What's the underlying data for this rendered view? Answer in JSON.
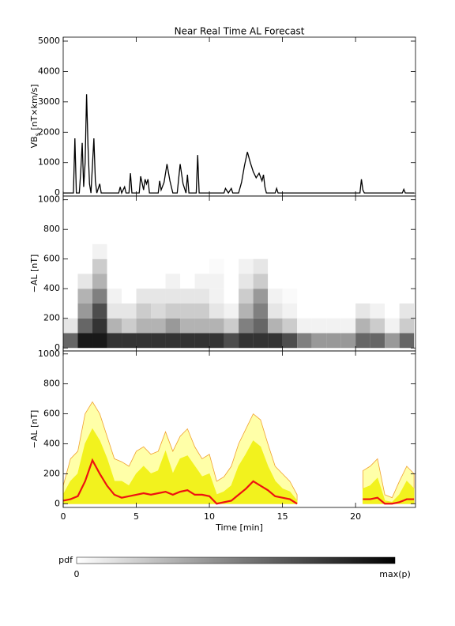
{
  "chart_data": [
    {
      "type": "line",
      "title": "Near Real Time AL Forecast",
      "ylabel": {
        "main": "VB",
        "sub": "s",
        "rest": " [nT×km/s]"
      },
      "color": "#000000",
      "x": [
        0.0,
        0.7,
        0.8,
        0.9,
        1.1,
        1.2,
        1.3,
        1.4,
        1.5,
        1.6,
        1.7,
        1.8,
        1.9,
        2.0,
        2.1,
        2.2,
        2.3,
        2.5,
        2.6,
        3.8,
        3.9,
        4.0,
        4.2,
        4.3,
        4.5,
        4.6,
        4.7,
        5.2,
        5.3,
        5.5,
        5.6,
        5.7,
        5.8,
        5.9,
        6.5,
        6.6,
        6.7,
        6.9,
        7.0,
        7.1,
        7.3,
        7.5,
        7.8,
        8.0,
        8.2,
        8.4,
        8.5,
        8.6,
        9.1,
        9.2,
        9.3,
        11.0,
        11.1,
        11.3,
        11.5,
        11.6,
        12.0,
        12.2,
        12.4,
        12.6,
        12.8,
        13.0,
        13.2,
        13.4,
        13.6,
        13.7,
        13.8,
        13.9,
        14.5,
        14.6,
        14.7,
        20.3,
        20.4,
        20.5,
        20.6,
        23.2,
        23.3,
        23.4,
        24.0
      ],
      "values": [
        0,
        0,
        1800,
        0,
        0,
        700,
        1650,
        200,
        1000,
        3250,
        1500,
        300,
        0,
        900,
        1800,
        400,
        0,
        300,
        0,
        0,
        200,
        0,
        200,
        0,
        0,
        650,
        0,
        0,
        550,
        100,
        450,
        300,
        450,
        0,
        0,
        400,
        100,
        350,
        650,
        950,
        400,
        0,
        0,
        950,
        300,
        0,
        600,
        0,
        0,
        1250,
        0,
        0,
        150,
        0,
        150,
        0,
        0,
        350,
        900,
        1350,
        1000,
        700,
        500,
        650,
        400,
        600,
        200,
        0,
        0,
        150,
        0,
        0,
        450,
        100,
        0,
        0,
        120,
        0,
        0
      ],
      "xlim": [
        0,
        24.1
      ],
      "xticks": [
        0,
        5,
        10,
        15,
        20
      ],
      "show_xtick_labels": false,
      "ylim": [
        -100,
        5130
      ],
      "yticks": [
        0,
        1000,
        2000,
        3000,
        4000,
        5000
      ]
    },
    {
      "type": "heatmap",
      "ylabel": "−AL [nT]",
      "xbins": [
        0,
        1,
        2,
        3,
        4,
        5,
        6,
        7,
        8,
        9,
        10,
        11,
        12,
        13,
        14,
        15,
        16,
        17,
        18,
        19,
        20,
        21,
        22,
        23,
        24
      ],
      "ybins": [
        0,
        100,
        200,
        300,
        400,
        500,
        600,
        700
      ],
      "z": [
        [
          0.6,
          0.1,
          0,
          0,
          0,
          0,
          0
        ],
        [
          0.9,
          0.6,
          0.4,
          0.3,
          0.1,
          0,
          0
        ],
        [
          0.9,
          0.8,
          0.7,
          0.5,
          0.3,
          0.2,
          0.05
        ],
        [
          0.8,
          0.3,
          0.1,
          0.05,
          0,
          0,
          0
        ],
        [
          0.8,
          0.2,
          0.1,
          0,
          0,
          0,
          0
        ],
        [
          0.8,
          0.3,
          0.2,
          0.1,
          0,
          0,
          0
        ],
        [
          0.8,
          0.3,
          0.15,
          0.1,
          0,
          0,
          0
        ],
        [
          0.8,
          0.4,
          0.2,
          0.1,
          0.05,
          0,
          0
        ],
        [
          0.8,
          0.3,
          0.2,
          0.1,
          0,
          0,
          0
        ],
        [
          0.8,
          0.3,
          0.2,
          0.1,
          0.05,
          0,
          0
        ],
        [
          0.8,
          0.3,
          0.1,
          0.05,
          0.05,
          0.02,
          0
        ],
        [
          0.7,
          0.2,
          0.05,
          0,
          0,
          0,
          0
        ],
        [
          0.8,
          0.5,
          0.3,
          0.2,
          0.1,
          0.05,
          0
        ],
        [
          0.8,
          0.6,
          0.5,
          0.4,
          0.2,
          0.1,
          0
        ],
        [
          0.8,
          0.3,
          0.1,
          0.05,
          0,
          0,
          0
        ],
        [
          0.7,
          0.2,
          0.05,
          0.02,
          0,
          0,
          0
        ],
        [
          0.5,
          0.05,
          0,
          0,
          0,
          0,
          0
        ],
        [
          0.4,
          0.05,
          0,
          0,
          0,
          0,
          0
        ],
        [
          0.4,
          0.05,
          0,
          0,
          0,
          0,
          0
        ],
        [
          0.4,
          0.05,
          0,
          0,
          0,
          0,
          0
        ],
        [
          0.6,
          0.3,
          0.1,
          0,
          0,
          0,
          0
        ],
        [
          0.6,
          0.2,
          0.05,
          0,
          0,
          0,
          0
        ],
        [
          0.4,
          0.05,
          0,
          0,
          0,
          0,
          0
        ],
        [
          0.6,
          0.2,
          0.1,
          0,
          0,
          0,
          0
        ]
      ],
      "colorbar": {
        "label": "pdf",
        "min_label": "0",
        "max_label": "max(p)"
      },
      "xlim": [
        0,
        24.1
      ],
      "xticks": [
        0,
        5,
        10,
        15,
        20
      ],
      "show_xtick_labels": false,
      "ylim": [
        -20,
        1025
      ],
      "yticks": [
        0,
        200,
        400,
        600,
        800,
        1000
      ]
    },
    {
      "type": "area",
      "ylabel": "−AL [nT]",
      "xlabel": "Time [min]",
      "x": [
        0,
        0.5,
        1,
        1.5,
        2,
        2.5,
        3,
        3.5,
        4,
        4.5,
        5,
        5.5,
        6,
        6.5,
        7,
        7.5,
        8,
        8.5,
        9,
        9.5,
        10,
        10.5,
        11,
        11.5,
        12,
        12.5,
        13,
        13.5,
        14,
        14.5,
        15,
        15.5,
        16,
        16.5,
        17,
        17.5,
        18,
        18.5,
        19,
        19.5,
        20,
        20.5,
        21,
        21.5,
        22,
        22.5,
        23,
        23.5,
        24
      ],
      "series": [
        {
          "color": "#f0a030",
          "fill": "#ffffa8",
          "values": [
            120,
            300,
            350,
            600,
            680,
            600,
            450,
            300,
            280,
            250,
            350,
            380,
            330,
            350,
            480,
            350,
            450,
            500,
            380,
            300,
            330,
            150,
            180,
            250,
            400,
            500,
            600,
            560,
            400,
            250,
            200,
            150,
            60,
            null,
            null,
            null,
            null,
            null,
            null,
            null,
            null,
            220,
            250,
            300,
            60,
            40,
            150,
            250,
            200
          ]
        },
        {
          "color": "#f2f21e",
          "fill": "#f2f21e",
          "values": [
            60,
            150,
            200,
            400,
            500,
            420,
            300,
            150,
            150,
            120,
            200,
            250,
            200,
            220,
            350,
            200,
            300,
            320,
            250,
            180,
            200,
            60,
            80,
            120,
            250,
            330,
            420,
            380,
            250,
            150,
            100,
            80,
            20,
            null,
            null,
            null,
            null,
            null,
            null,
            null,
            null,
            100,
            120,
            170,
            20,
            10,
            60,
            150,
            100
          ]
        },
        {
          "color": "#ee1111",
          "values": [
            20,
            30,
            50,
            150,
            290,
            200,
            120,
            60,
            40,
            50,
            60,
            70,
            60,
            70,
            80,
            60,
            80,
            90,
            60,
            60,
            50,
            0,
            10,
            20,
            60,
            100,
            150,
            120,
            90,
            50,
            40,
            30,
            0,
            null,
            null,
            null,
            null,
            null,
            null,
            null,
            null,
            30,
            30,
            40,
            0,
            0,
            10,
            30,
            30
          ]
        }
      ],
      "xlim": [
        0,
        24.1
      ],
      "xticks": [
        0,
        5,
        10,
        15,
        20
      ],
      "show_xtick_labels": true,
      "ylim": [
        -25,
        1020
      ],
      "yticks": [
        0,
        200,
        400,
        600,
        800,
        1000
      ]
    }
  ]
}
